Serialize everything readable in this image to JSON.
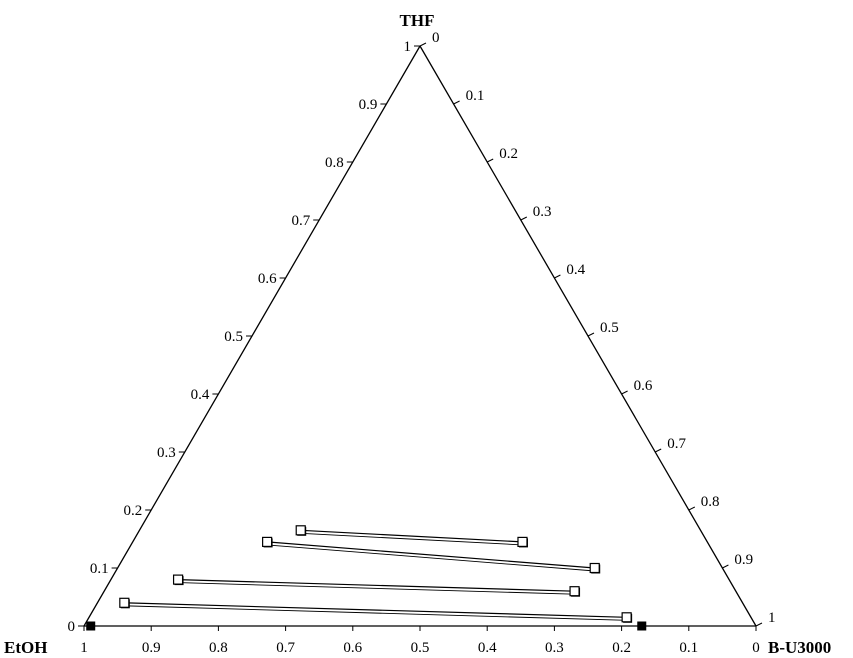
{
  "colors": {
    "axis": "#000000",
    "marker_open_fill": "#ffffff",
    "marker_filled": "#000000",
    "tie_line": "#000000",
    "background": "#ffffff"
  },
  "chart_data": {
    "type": "ternary",
    "vertex_labels": {
      "top": "THF",
      "left": "EtOH",
      "right": "B-U3000"
    },
    "axes": {
      "left_edge_ticks": [
        "0",
        "0.1",
        "0.2",
        "0.3",
        "0.4",
        "0.5",
        "0.6",
        "0.7",
        "0.8",
        "0.9",
        "1"
      ],
      "right_edge_ticks": [
        "0",
        "0.1",
        "0.2",
        "0.3",
        "0.4",
        "0.5",
        "0.6",
        "0.7",
        "0.8",
        "0.9",
        "1"
      ],
      "bottom_edge_ticks": [
        "1",
        "0.9",
        "0.8",
        "0.7",
        "0.6",
        "0.5",
        "0.4",
        "0.3",
        "0.2",
        "0.1",
        "0"
      ]
    },
    "components": [
      "THF",
      "EtOH",
      "B-U3000"
    ],
    "tie_lines": [
      {
        "phase_a": {
          "THF": 0.165,
          "B-U3000": 0.24
        },
        "phase_b": {
          "THF": 0.145,
          "B-U3000": 0.58
        }
      },
      {
        "phase_a": {
          "THF": 0.145,
          "B-U3000": 0.2
        },
        "phase_b": {
          "THF": 0.1,
          "B-U3000": 0.71
        }
      },
      {
        "phase_a": {
          "THF": 0.08,
          "B-U3000": 0.1
        },
        "phase_b": {
          "THF": 0.06,
          "B-U3000": 0.7
        }
      },
      {
        "phase_a": {
          "THF": 0.04,
          "B-U3000": 0.04
        },
        "phase_b": {
          "THF": 0.015,
          "B-U3000": 0.8
        }
      }
    ],
    "filled_markers": [
      {
        "THF": 0.0,
        "B-U3000": 0.01
      },
      {
        "THF": 0.0,
        "B-U3000": 0.83
      }
    ]
  }
}
